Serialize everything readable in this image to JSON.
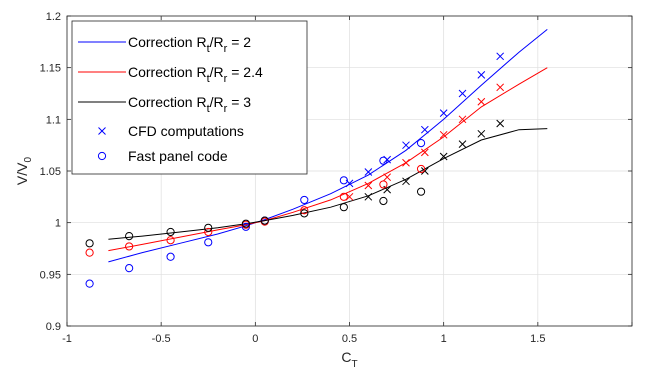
{
  "chart_data": {
    "type": "line",
    "xlabel": "C",
    "xlabel_sub": "T",
    "ylabel": "V/V",
    "ylabel_sub": "0",
    "xlim": [
      -1,
      2
    ],
    "ylim": [
      0.9,
      1.2
    ],
    "xticks": [
      "-1",
      "-0.5",
      "0",
      "0.5",
      "1",
      "1.5"
    ],
    "yticks": [
      "0.9",
      "0.95",
      "1",
      "1.05",
      "1.1",
      "1.15",
      "1.2"
    ],
    "grid": true,
    "legend_position": "top-left",
    "legend": [
      {
        "prefix": "Correction R",
        "sub1": "t",
        "mid": "/R",
        "sub2": "r",
        "suffix": " = 2"
      },
      {
        "prefix": "Correction R",
        "sub1": "t",
        "mid": "/R",
        "sub2": "r",
        "suffix": " = 2.4"
      },
      {
        "prefix": "Correction R",
        "sub1": "t",
        "mid": "/R",
        "sub2": "r",
        "suffix": " = 3"
      },
      {
        "prefix": "CFD computations"
      },
      {
        "prefix": "Fast panel code"
      }
    ],
    "series": [
      {
        "kind": "line",
        "color": "#0000ff",
        "x": [
          -0.78,
          -0.6,
          -0.4,
          -0.2,
          -0.05,
          0.05,
          0.2,
          0.4,
          0.6,
          0.8,
          1.0,
          1.2,
          1.4,
          1.55
        ],
        "y": [
          0.962,
          0.971,
          0.98,
          0.989,
          0.997,
          1.003,
          1.013,
          1.028,
          1.046,
          1.07,
          1.1,
          1.133,
          1.165,
          1.187
        ]
      },
      {
        "kind": "line",
        "color": "#ff0000",
        "x": [
          -0.78,
          -0.6,
          -0.4,
          -0.2,
          -0.05,
          0.05,
          0.2,
          0.4,
          0.6,
          0.8,
          1.0,
          1.2,
          1.4,
          1.55
        ],
        "y": [
          0.973,
          0.979,
          0.986,
          0.993,
          0.998,
          1.002,
          1.01,
          1.022,
          1.038,
          1.058,
          1.083,
          1.112,
          1.134,
          1.15
        ]
      },
      {
        "kind": "line",
        "color": "#000000",
        "x": [
          -0.78,
          -0.6,
          -0.4,
          -0.2,
          -0.05,
          0.05,
          0.2,
          0.4,
          0.6,
          0.8,
          1.0,
          1.2,
          1.4,
          1.55
        ],
        "y": [
          0.984,
          0.987,
          0.991,
          0.995,
          0.999,
          1.002,
          1.007,
          1.015,
          1.026,
          1.042,
          1.062,
          1.08,
          1.09,
          1.091
        ]
      },
      {
        "kind": "cross",
        "color": "#0000ff",
        "x": [
          0.5,
          0.6,
          0.7,
          0.8,
          0.9,
          1.0,
          1.1,
          1.2,
          1.3
        ],
        "y": [
          1.038,
          1.049,
          1.061,
          1.075,
          1.09,
          1.106,
          1.125,
          1.143,
          1.161
        ]
      },
      {
        "kind": "cross",
        "color": "#ff0000",
        "x": [
          0.5,
          0.6,
          0.7,
          0.8,
          0.9,
          1.0,
          1.1,
          1.2,
          1.3
        ],
        "y": [
          1.025,
          1.036,
          1.044,
          1.058,
          1.068,
          1.085,
          1.1,
          1.117,
          1.131
        ]
      },
      {
        "kind": "cross",
        "color": "#000000",
        "x": [
          0.6,
          0.7,
          0.8,
          0.9,
          1.0,
          1.1,
          1.2,
          1.3
        ],
        "y": [
          1.025,
          1.032,
          1.04,
          1.05,
          1.064,
          1.076,
          1.086,
          1.096
        ]
      },
      {
        "kind": "circle",
        "color": "#0000ff",
        "x": [
          -0.88,
          -0.67,
          -0.45,
          -0.25,
          -0.05,
          0.05,
          0.26,
          0.47,
          0.68,
          0.88
        ],
        "y": [
          0.941,
          0.956,
          0.967,
          0.981,
          0.996,
          1.002,
          1.022,
          1.041,
          1.06,
          1.077
        ]
      },
      {
        "kind": "circle",
        "color": "#ff0000",
        "x": [
          -0.88,
          -0.67,
          -0.45,
          -0.25,
          -0.05,
          0.05,
          0.26,
          0.47,
          0.68,
          0.88
        ],
        "y": [
          0.971,
          0.977,
          0.983,
          0.991,
          0.998,
          1.001,
          1.012,
          1.025,
          1.037,
          1.052
        ]
      },
      {
        "kind": "circle",
        "color": "#000000",
        "x": [
          -0.88,
          -0.67,
          -0.45,
          -0.25,
          -0.05,
          0.05,
          0.26,
          0.47,
          0.68,
          0.88
        ],
        "y": [
          0.98,
          0.987,
          0.991,
          0.995,
          0.999,
          1.002,
          1.009,
          1.015,
          1.021,
          1.03
        ]
      }
    ]
  }
}
